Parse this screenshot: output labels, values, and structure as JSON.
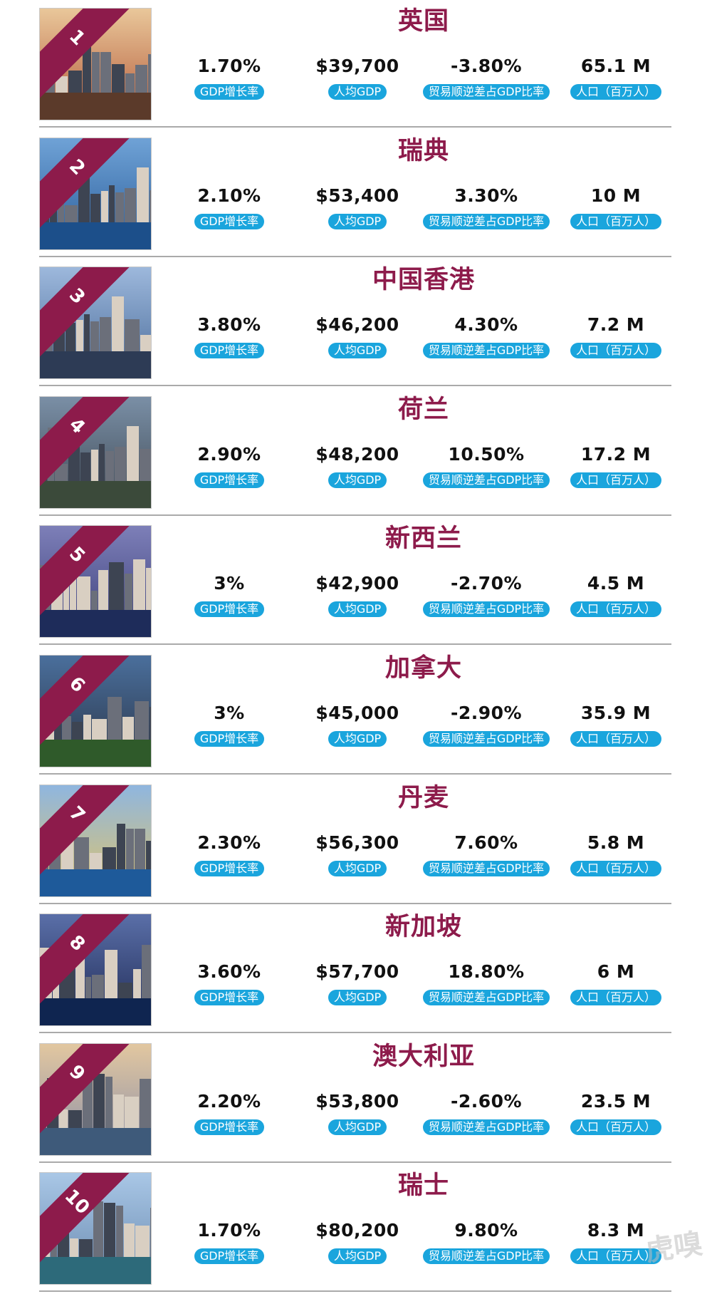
{
  "labels": {
    "gdp_growth": "GDP增长率",
    "gdp_per_capita": "人均GDP",
    "trade_balance_ratio": "贸易顺逆差占GDP比率",
    "population": "人口（百万人）"
  },
  "colors": {
    "accent": "#8d1b4b",
    "pill": "#1aa5dd",
    "value_text": "#111111"
  },
  "countries": [
    {
      "rank": "1",
      "name": "英国",
      "gdp_growth": "1.70%",
      "gdp_per_capita": "$39,700",
      "trade_balance_ratio": "-3.80%",
      "population": "65.1 M"
    },
    {
      "rank": "2",
      "name": "瑞典",
      "gdp_growth": "2.10%",
      "gdp_per_capita": "$53,400",
      "trade_balance_ratio": "3.30%",
      "population": "10 M"
    },
    {
      "rank": "3",
      "name": "中国香港",
      "gdp_growth": "3.80%",
      "gdp_per_capita": "$46,200",
      "trade_balance_ratio": "4.30%",
      "population": "7.2 M"
    },
    {
      "rank": "4",
      "name": "荷兰",
      "gdp_growth": "2.90%",
      "gdp_per_capita": "$48,200",
      "trade_balance_ratio": "10.50%",
      "population": "17.2 M"
    },
    {
      "rank": "5",
      "name": "新西兰",
      "gdp_growth": "3%",
      "gdp_per_capita": "$42,900",
      "trade_balance_ratio": "-2.70%",
      "population": "4.5 M"
    },
    {
      "rank": "6",
      "name": "加拿大",
      "gdp_growth": "3%",
      "gdp_per_capita": "$45,000",
      "trade_balance_ratio": "-2.90%",
      "population": "35.9 M"
    },
    {
      "rank": "7",
      "name": "丹麦",
      "gdp_growth": "2.30%",
      "gdp_per_capita": "$56,300",
      "trade_balance_ratio": "7.60%",
      "population": "5.8 M"
    },
    {
      "rank": "8",
      "name": "新加坡",
      "gdp_growth": "3.60%",
      "gdp_per_capita": "$57,700",
      "trade_balance_ratio": "18.80%",
      "population": "6 M"
    },
    {
      "rank": "9",
      "name": "澳大利亚",
      "gdp_growth": "2.20%",
      "gdp_per_capita": "$53,800",
      "trade_balance_ratio": "-2.60%",
      "population": "23.5 M"
    },
    {
      "rank": "10",
      "name": "瑞士",
      "gdp_growth": "1.70%",
      "gdp_per_capita": "$80,200",
      "trade_balance_ratio": "9.80%",
      "population": "8.3 M"
    }
  ],
  "watermark": "虎嗅"
}
